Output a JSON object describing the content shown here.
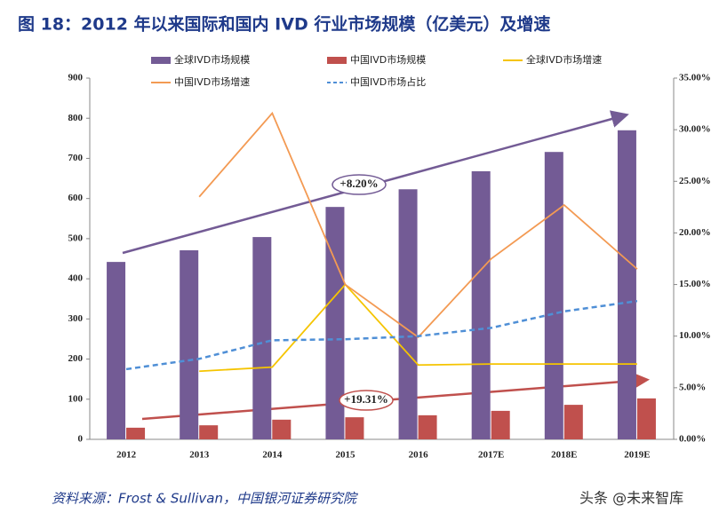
{
  "chart_data": {
    "type": "bar",
    "title": "图 18：2012 年以来国际和国内 IVD 行业市场规模（亿美元）及增速",
    "categories": [
      "2012",
      "2013",
      "2014",
      "2015",
      "2016",
      "2017E",
      "2018E",
      "2019E"
    ],
    "series": [
      {
        "name": "全球IVD市场规模",
        "type": "bar",
        "color": "#735b95",
        "values": [
          442,
          471,
          504,
          579,
          623,
          668,
          716,
          770
        ]
      },
      {
        "name": "中国IVD市场规模",
        "type": "bar",
        "color": "#c0504d",
        "values": [
          29,
          35,
          49,
          55,
          60,
          71,
          86,
          102
        ]
      },
      {
        "name": "全球IVD市场增速",
        "type": "line",
        "axis": "y2",
        "color": "#f5c400",
        "values": [
          null,
          6.6,
          7.0,
          15.0,
          7.2,
          7.3,
          7.3,
          7.3
        ]
      },
      {
        "name": "中国IVD市场增速",
        "type": "line",
        "axis": "y2",
        "color": "#f39a53",
        "values": [
          null,
          23.5,
          31.6,
          15.0,
          9.9,
          17.5,
          22.7,
          16.5
        ]
      },
      {
        "name": "中国IVD市场占比",
        "type": "line",
        "axis": "y2",
        "color": "#4f8fd6",
        "dashed": true,
        "values": [
          6.8,
          7.8,
          9.6,
          9.7,
          10.0,
          10.8,
          12.4,
          13.4
        ]
      }
    ],
    "ylim": [
      0,
      900
    ],
    "yticks": [
      0,
      100,
      200,
      300,
      400,
      500,
      600,
      700,
      800,
      900
    ],
    "y2lim": [
      0,
      35
    ],
    "y2ticks": [
      {
        "value": 0,
        "label": "0.00%"
      },
      {
        "value": 5,
        "label": "5.00%"
      },
      {
        "value": 10,
        "label": "10.00%"
      },
      {
        "value": 15,
        "label": "15.00%"
      },
      {
        "value": 20,
        "label": "20.00%"
      },
      {
        "value": 25,
        "label": "25.00%"
      },
      {
        "value": 30,
        "label": "30.00%"
      },
      {
        "value": 35,
        "label": "35.00%"
      }
    ],
    "annotations": [
      "+8.20%",
      "+19.31%"
    ],
    "source": "资料来源：Frost & Sullivan，中国银河证券研究院",
    "watermark": "头条 @未来智库"
  }
}
